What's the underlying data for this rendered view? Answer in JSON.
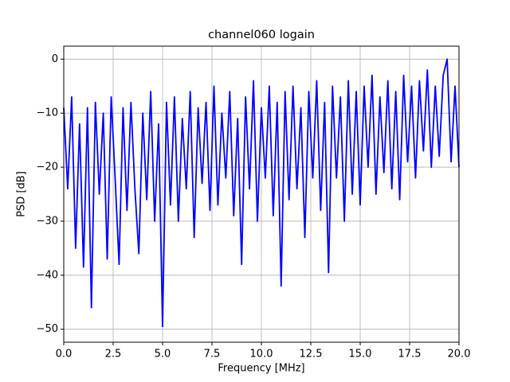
{
  "chart_data": {
    "type": "line",
    "title": "channel060 logain",
    "x_label": "Frequency [MHz]",
    "y_label": "PSD [dB]",
    "color": "#0000ff",
    "grid": true,
    "xlim": [
      0,
      20
    ],
    "ylim": [
      -52.4,
      2.4
    ],
    "xticks": [
      {
        "value": 0,
        "label": "0.0"
      },
      {
        "value": 2.5,
        "label": "2.5"
      },
      {
        "value": 5,
        "label": "5.0"
      },
      {
        "value": 7.5,
        "label": "7.5"
      },
      {
        "value": 10,
        "label": "10.0"
      },
      {
        "value": 12.5,
        "label": "12.5"
      },
      {
        "value": 15,
        "label": "15.0"
      },
      {
        "value": 17.5,
        "label": "17.5"
      },
      {
        "value": 20,
        "label": "20.0"
      }
    ],
    "yticks": [
      {
        "value": -50,
        "label": "−50"
      },
      {
        "value": -40,
        "label": "−40"
      },
      {
        "value": -30,
        "label": "−30"
      },
      {
        "value": -20,
        "label": "−20"
      },
      {
        "value": -10,
        "label": "−10"
      },
      0
    ],
    "x": [
      0,
      0.2,
      0.4,
      0.6,
      0.8,
      1,
      1.2,
      1.4,
      1.6,
      1.8,
      2,
      2.2,
      2.4,
      2.6,
      2.8,
      3,
      3.2,
      3.4,
      3.6,
      3.8,
      4,
      4.2,
      4.4,
      4.6,
      4.8,
      5,
      5.2,
      5.4,
      5.6,
      5.8,
      6,
      6.2,
      6.4,
      6.6,
      6.8,
      7,
      7.2,
      7.4,
      7.6,
      7.8,
      8,
      8.2,
      8.4,
      8.6,
      8.8,
      9,
      9.2,
      9.4,
      9.6,
      9.8,
      10,
      10.2,
      10.4,
      10.6,
      10.8,
      11,
      11.2,
      11.4,
      11.6,
      11.8,
      12,
      12.2,
      12.4,
      12.6,
      12.8,
      13,
      13.2,
      13.4,
      13.6,
      13.8,
      14,
      14.2,
      14.4,
      14.6,
      14.8,
      15,
      15.2,
      15.4,
      15.6,
      15.8,
      16,
      16.2,
      16.4,
      16.6,
      16.8,
      17,
      17.2,
      17.4,
      17.6,
      17.8,
      18,
      18.2,
      18.4,
      18.6,
      18.8,
      19,
      19.2,
      19.4,
      19.6,
      19.8,
      20
    ],
    "values": [
      -9,
      -24,
      -7,
      -35,
      -12,
      -38.5,
      -9,
      -46,
      -8,
      -25,
      -10,
      -37,
      -7,
      -22,
      -38,
      -9,
      -28,
      -8,
      -24,
      -36,
      -10,
      -26,
      -6,
      -30,
      -12,
      -49.5,
      -8,
      -27,
      -7,
      -30,
      -11,
      -24,
      -6,
      -33,
      -9,
      -23,
      -8,
      -28,
      -5,
      -27,
      -10,
      -22,
      -6,
      -29,
      -11,
      -38,
      -7,
      -24,
      -4,
      -30,
      -9,
      -22,
      -5,
      -29,
      -8,
      -42,
      -6,
      -26,
      -5,
      -24,
      -9,
      -33,
      -6,
      -22,
      -4,
      -28,
      -8,
      -39.5,
      -5,
      -22,
      -7,
      -30,
      -4,
      -25,
      -6,
      -27,
      -5,
      -20,
      -3,
      -25,
      -7,
      -21,
      -4,
      -24,
      -6,
      -26,
      -3,
      -19,
      -5,
      -22,
      -4,
      -17,
      -2,
      -20,
      -5,
      -18,
      -3,
      0,
      -19,
      -5,
      -20
    ]
  }
}
